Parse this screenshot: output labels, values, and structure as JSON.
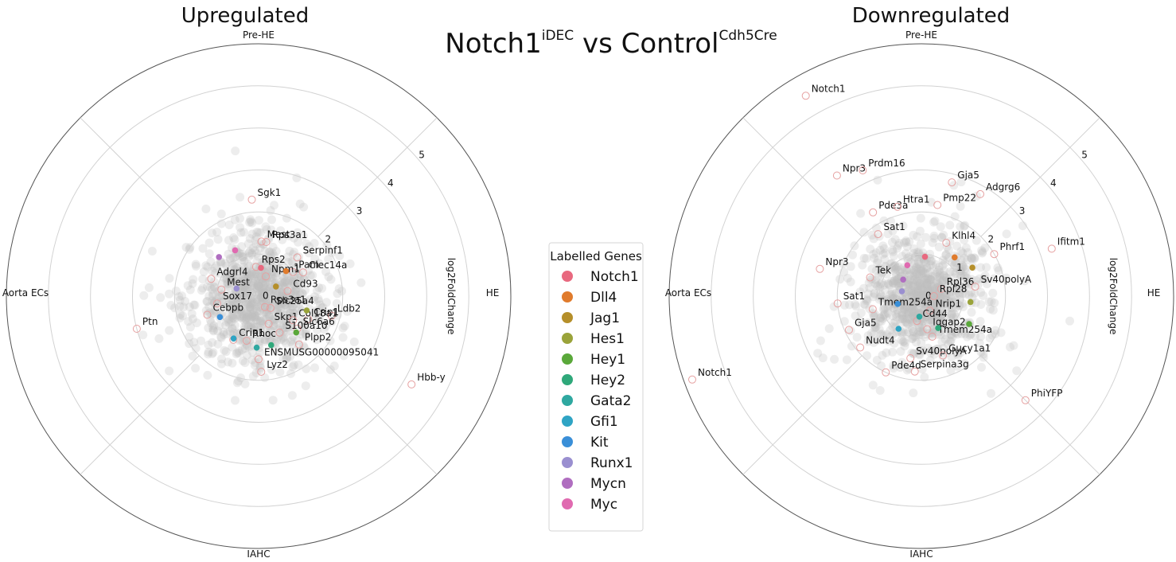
{
  "figure": {
    "title": "Notch1",
    "title_sup1": "iDEC",
    "title_mid": " vs Control",
    "title_sup2": "Cdh5Cre"
  },
  "legend": {
    "title": "Labelled Genes",
    "entries": [
      {
        "name": "Notch1",
        "color": "#e8697f"
      },
      {
        "name": "Dll4",
        "color": "#e07b2c"
      },
      {
        "name": "Jag1",
        "color": "#b58f2a"
      },
      {
        "name": "Hes1",
        "color": "#9aa33a"
      },
      {
        "name": "Hey1",
        "color": "#5aa83a"
      },
      {
        "name": "Hey2",
        "color": "#2fa87a"
      },
      {
        "name": "Gata2",
        "color": "#2fa8a0"
      },
      {
        "name": "Gfi1",
        "color": "#2fa4c4"
      },
      {
        "name": "Kit",
        "color": "#3a8fd8"
      },
      {
        "name": "Runx1",
        "color": "#9a8fd0"
      },
      {
        "name": "Mycn",
        "color": "#b06ec0"
      },
      {
        "name": "Myc",
        "color": "#e06ab0"
      }
    ]
  },
  "chart_data": [
    {
      "type": "scatter",
      "coordinate_system": "polar",
      "title": "Upregulated",
      "sectors": [
        "Pre-HE",
        "HE",
        "IAHC",
        "Aorta ECs"
      ],
      "radial_label": "log2FoldChange",
      "radial_ticks": [
        "0",
        "1",
        "2",
        "3",
        "4",
        "5"
      ],
      "rlim": [
        0,
        6
      ],
      "labelled_genes": [
        {
          "label": "Sgk1",
          "angle": -4,
          "r": 2.3
        },
        {
          "label": "Mest",
          "angle": 3,
          "r": 1.3
        },
        {
          "label": "Rps3a1",
          "angle": 8,
          "r": 1.3
        },
        {
          "label": "Serpinf1",
          "angle": 45,
          "r": 1.3
        },
        {
          "label": "Rps2",
          "angle": -5,
          "r": 0.7
        },
        {
          "label": "Pam",
          "angle": 55,
          "r": 1.0
        },
        {
          "label": "Clec14a",
          "angle": 62,
          "r": 1.2
        },
        {
          "label": "Npm1",
          "angle": 20,
          "r": 0.5
        },
        {
          "label": "Adgrl4",
          "angle": -70,
          "r": 1.2
        },
        {
          "label": "0",
          "angle": 0,
          "r": 0.1
        },
        {
          "label": "Cd93",
          "angle": 80,
          "r": 0.7
        },
        {
          "label": "Mest",
          "angle": -80,
          "r": 0.9
        },
        {
          "label": "Rps3a1",
          "angle": 150,
          "r": 0.3
        },
        {
          "label": "Sox17",
          "angle": -100,
          "r": 1.0
        },
        {
          "label": "Slc25a4",
          "angle": 135,
          "r": 0.4
        },
        {
          "label": "Crip1",
          "angle": 115,
          "r": 1.3
        },
        {
          "label": "Ldb2",
          "angle": 105,
          "r": 1.8
        },
        {
          "label": "Cebpb",
          "angle": -110,
          "r": 1.3
        },
        {
          "label": "Skp1",
          "angle": 160,
          "r": 0.7
        },
        {
          "label": "Col18a1",
          "angle": 125,
          "r": 1.0
        },
        {
          "label": "Slc6a6",
          "angle": 130,
          "r": 1.2
        },
        {
          "label": "S100a10",
          "angle": 150,
          "r": 1.0
        },
        {
          "label": "Plpp2",
          "angle": 140,
          "r": 1.5
        },
        {
          "label": "Crip1",
          "angle": -150,
          "r": 1.2
        },
        {
          "label": "Rhoc",
          "angle": -165,
          "r": 1.1
        },
        {
          "label": "Ptn",
          "angle": -105,
          "r": 3.0
        },
        {
          "label": "ENSMUSG00000095041",
          "angle": 180,
          "r": 1.5
        },
        {
          "label": "Lyz2",
          "angle": 178,
          "r": 1.8
        },
        {
          "label": "Hbb-y",
          "angle": 120,
          "r": 4.2
        }
      ]
    },
    {
      "type": "scatter",
      "coordinate_system": "polar",
      "title": "Downregulated",
      "sectors": [
        "Pre-HE",
        "HE",
        "IAHC",
        "Aorta ECs"
      ],
      "radial_label": "log2FoldChange",
      "radial_ticks": [
        "0",
        "1",
        "2",
        "3",
        "4",
        "5"
      ],
      "rlim": [
        0,
        6
      ],
      "labelled_genes": [
        {
          "label": "Notch1",
          "angle": -30,
          "r": 5.5
        },
        {
          "label": "Npr3",
          "angle": -35,
          "r": 3.5
        },
        {
          "label": "Prdm16",
          "angle": -25,
          "r": 3.3
        },
        {
          "label": "Gja5",
          "angle": 15,
          "r": 2.8
        },
        {
          "label": "Pde3a",
          "angle": -30,
          "r": 2.3
        },
        {
          "label": "Htra1",
          "angle": -15,
          "r": 2.2
        },
        {
          "label": "Pmp22",
          "angle": 10,
          "r": 2.2
        },
        {
          "label": "Adgrg6",
          "angle": 30,
          "r": 2.8
        },
        {
          "label": "Sat1",
          "angle": -35,
          "r": 1.8
        },
        {
          "label": "Klhl4",
          "angle": 25,
          "r": 1.4
        },
        {
          "label": "Phrf1",
          "angle": 60,
          "r": 2.0
        },
        {
          "label": "Npr3",
          "angle": -75,
          "r": 2.5
        },
        {
          "label": "Tek",
          "angle": -70,
          "r": 1.3
        },
        {
          "label": "Ifitm1",
          "angle": 70,
          "r": 3.3
        },
        {
          "label": "0",
          "angle": 0,
          "r": 0.05
        },
        {
          "label": "Rpl36",
          "angle": 70,
          "r": 0.5
        },
        {
          "label": "Rpl28",
          "angle": 90,
          "r": 0.3
        },
        {
          "label": "Sv40polyA",
          "angle": 80,
          "r": 1.3
        },
        {
          "label": "Sat1",
          "angle": -95,
          "r": 2.0
        },
        {
          "label": "Tmem254a",
          "angle": -105,
          "r": 1.2
        },
        {
          "label": "Nrip1",
          "angle": 150,
          "r": 0.4
        },
        {
          "label": "Cd44",
          "angle": 190,
          "r": 0.6
        },
        {
          "label": "Gja5",
          "angle": -115,
          "r": 1.9
        },
        {
          "label": "Iqgap2",
          "angle": 170,
          "r": 0.8
        },
        {
          "label": "Tmem254a",
          "angle": 165,
          "r": 1.0
        },
        {
          "label": "Nudt4",
          "angle": -130,
          "r": 1.9
        },
        {
          "label": "Sv40polyA",
          "angle": 190,
          "r": 1.5
        },
        {
          "label": "Gucy1a1",
          "angle": 160,
          "r": 1.5
        },
        {
          "label": "Pde4d",
          "angle": -155,
          "r": 2.0
        },
        {
          "label": "Serpina3g",
          "angle": 185,
          "r": 1.8
        },
        {
          "label": "Notch1",
          "angle": -110,
          "r": 5.8
        },
        {
          "label": "PhiYFP",
          "angle": 135,
          "r": 3.5
        }
      ]
    }
  ]
}
